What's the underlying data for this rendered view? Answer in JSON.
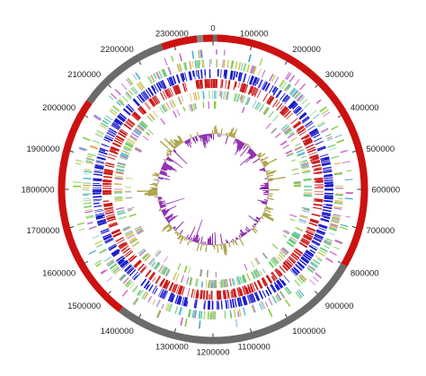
{
  "figure": {
    "type": "circular-genome-map",
    "genome_length": 2400000,
    "tick_labels": [
      {
        "position": 0,
        "text": "0"
      },
      {
        "position": 100000,
        "text": "100000"
      },
      {
        "position": 200000,
        "text": "200000"
      },
      {
        "position": 300000,
        "text": "300000"
      },
      {
        "position": 400000,
        "text": "400000"
      },
      {
        "position": 500000,
        "text": "500000"
      },
      {
        "position": 600000,
        "text": "600000"
      },
      {
        "position": 700000,
        "text": "700000"
      },
      {
        "position": 800000,
        "text": "800000"
      },
      {
        "position": 900000,
        "text": "900000"
      },
      {
        "position": 1000000,
        "text": "1000000"
      },
      {
        "position": 1100000,
        "text": "1100000"
      },
      {
        "position": 1200000,
        "text": "1200000"
      },
      {
        "position": 1300000,
        "text": "1300000"
      },
      {
        "position": 1400000,
        "text": "1400000"
      },
      {
        "position": 1500000,
        "text": "1500000"
      },
      {
        "position": 1600000,
        "text": "1600000"
      },
      {
        "position": 1700000,
        "text": "1700000"
      },
      {
        "position": 1800000,
        "text": "1800000"
      },
      {
        "position": 1900000,
        "text": "1900000"
      },
      {
        "position": 2000000,
        "text": "2000000"
      },
      {
        "position": 2100000,
        "text": "2100000"
      },
      {
        "position": 2200000,
        "text": "2200000"
      },
      {
        "position": 2300000,
        "text": "2300000"
      }
    ],
    "contig_segments": [
      {
        "start": 0,
        "end": 10000,
        "color": "#6b6b6b"
      },
      {
        "start": 10000,
        "end": 800000,
        "color": "#cc1111"
      },
      {
        "start": 800000,
        "end": 1450000,
        "color": "#6b6b6b"
      },
      {
        "start": 1450000,
        "end": 2035000,
        "color": "#cc1111"
      },
      {
        "start": 2035000,
        "end": 2270000,
        "color": "#6b6b6b"
      },
      {
        "start": 2270000,
        "end": 2360000,
        "color": "#cc1111"
      },
      {
        "start": 2360000,
        "end": 2375000,
        "color": "#888888"
      },
      {
        "start": 2375000,
        "end": 2400000,
        "color": "#cc1111"
      }
    ],
    "feature_tracks": [
      {
        "name": "rna-features",
        "density": 0.15,
        "palette": [
          "#88cc44",
          "#cc66cc",
          "#44aacc"
        ]
      },
      {
        "name": "cog-forward",
        "density": 0.55,
        "palette": [
          "#66cc66",
          "#55bbdd",
          "#ddaa55",
          "#bb77cc",
          "#99dd88",
          "#77ccaa",
          "#cccc55"
        ]
      },
      {
        "name": "cds-forward",
        "density": 0.8,
        "palette": [
          "#1a1acc"
        ]
      },
      {
        "name": "cds-reverse",
        "density": 0.8,
        "palette": [
          "#cc1a1a"
        ]
      },
      {
        "name": "cog-reverse",
        "density": 0.55,
        "palette": [
          "#66cc66",
          "#55bbdd",
          "#ddaa55",
          "#bb77cc",
          "#99dd88",
          "#77ccaa",
          "#cccc55"
        ]
      },
      {
        "name": "misc-features",
        "density": 0.12,
        "palette": [
          "#88cc44",
          "#cc66cc",
          "#999999"
        ]
      }
    ],
    "colors": {
      "gc_content_positive": "#a8a040",
      "gc_content_negative": "#8822aa",
      "tick": "#333333"
    }
  }
}
